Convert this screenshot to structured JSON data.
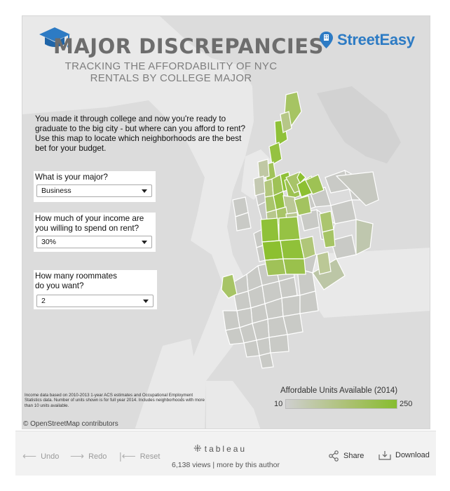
{
  "header": {
    "title": "MAJOR DISCREPANCIES",
    "subtitle": "TRACKING THE AFFORDABILITY OF NYC RENTALS BY COLLEGE MAJOR",
    "brand": "StreetEasy",
    "icons": [
      "graduation-cap-icon",
      "building-pin-icon"
    ]
  },
  "intro_text": "You made it through college and now you're ready to graduate to the big city - but where can you afford to rent? Use this map to locate which neighborhoods are the best bet for your budget.",
  "filters": [
    {
      "label": "What is your major?",
      "value": "Business"
    },
    {
      "label": "How much of your income are you willing to spend on rent?",
      "value": "30%"
    },
    {
      "label": "How many roommates do you want?",
      "value": "2"
    }
  ],
  "notes": "Income data based on 2010-2013 1-year ACS estimates and Occupational Employment Statistics data. Number of units shown is for full year 2014. Includes neighborhoods with more than 10 units available.",
  "credit": "© OpenStreetMap contributors",
  "legend": {
    "title": "Affordable Units Available (2014)",
    "min": "10",
    "max": "250",
    "colors": {
      "low": "#cfcfcf",
      "high": "#86bd2f"
    }
  },
  "map": {
    "land_color": "#dcdcdc",
    "water_color": "#e9e9e9",
    "neighborhood_low": "#c8cac4",
    "neighborhood_high": "#8cc232"
  },
  "toolbar": {
    "undo": "Undo",
    "redo": "Redo",
    "reset": "Reset",
    "brand": "tableau",
    "views": "6,138 views",
    "more": "more by this author",
    "share": "Share",
    "download": "Download"
  }
}
